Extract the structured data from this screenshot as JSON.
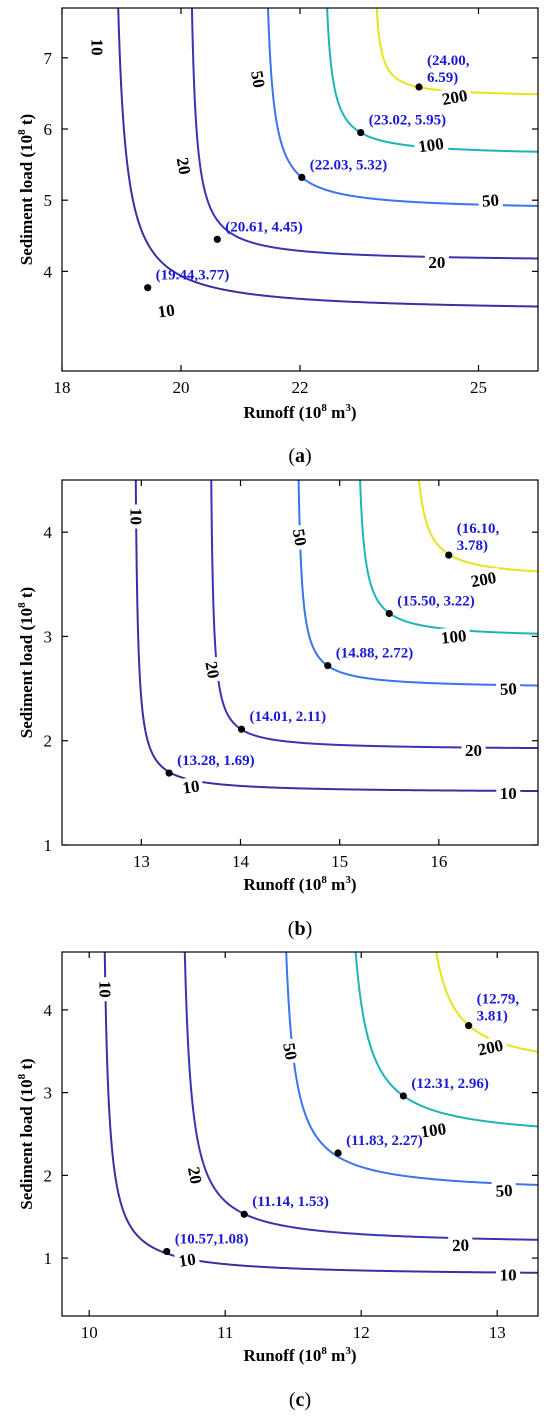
{
  "theme": {
    "point_label_color": "#1a1ad6",
    "level_colors": {
      "10": "#3a2f9e",
      "20": "#3a34b0",
      "50": "#3b75ee",
      "100": "#1fb3b8",
      "200": "#e8e41a"
    }
  },
  "chart_data": [
    {
      "type": "line",
      "caption": "a",
      "xlabel": "Runoff (10",
      "xlabel_sup": "8",
      "xlabel_tail": " m",
      "xlabel_sup2": "3",
      "xlabel_end": ")",
      "ylabel": "Sediment load (10",
      "ylabel_sup": "8",
      "ylabel_end": " t)",
      "xlim": [
        18,
        26
      ],
      "ylim": [
        2.6,
        7.7
      ],
      "xticks": [
        18,
        20,
        22,
        25
      ],
      "xticklabels": [
        "18",
        "20",
        "22",
        "25"
      ],
      "yticks": [
        4,
        5,
        6,
        7
      ],
      "yticklabels": [
        "4",
        "5",
        "6",
        "7"
      ],
      "series": [
        {
          "level": "10",
          "x0": 18.8,
          "y0": 3.42,
          "k": 0.62
        },
        {
          "level": "20",
          "x0": 20.1,
          "y0": 4.13,
          "k": 0.3
        },
        {
          "level": "50",
          "x0": 21.35,
          "y0": 4.85,
          "k": 0.32
        },
        {
          "level": "100",
          "x0": 22.35,
          "y0": 5.62,
          "k": 0.22
        },
        {
          "level": "200",
          "x0": 23.2,
          "y0": 6.45,
          "k": 0.11
        }
      ],
      "contour_labels": [
        {
          "text": "10",
          "x": 18.6,
          "y": 7.15,
          "rot": 90
        },
        {
          "text": "10",
          "x": 19.75,
          "y": 3.45,
          "rot": -8
        },
        {
          "text": "20",
          "x": 20.05,
          "y": 5.48,
          "rot": 80
        },
        {
          "text": "20",
          "x": 24.3,
          "y": 4.13,
          "rot": 0
        },
        {
          "text": "50",
          "x": 21.3,
          "y": 6.7,
          "rot": 80
        },
        {
          "text": "50",
          "x": 25.2,
          "y": 5.0,
          "rot": -4
        },
        {
          "text": "100",
          "x": 24.2,
          "y": 5.78,
          "rot": -8
        },
        {
          "text": "200",
          "x": 24.6,
          "y": 6.45,
          "rot": -10
        }
      ],
      "points": [
        {
          "x": 19.44,
          "y": 3.77,
          "label": "(19.44,3.77)"
        },
        {
          "x": 20.61,
          "y": 4.45,
          "label": "(20.61, 4.45)"
        },
        {
          "x": 22.03,
          "y": 5.32,
          "label": "(22.03, 5.32)"
        },
        {
          "x": 23.02,
          "y": 5.95,
          "label": "(23.02, 5.95)"
        },
        {
          "x": 24.0,
          "y": 6.59,
          "label": "(24.00,",
          "label2": "6.59)"
        }
      ]
    },
    {
      "type": "line",
      "caption": "b",
      "xlabel": "Runoff (10",
      "xlabel_sup": "8",
      "xlabel_tail": " m",
      "xlabel_sup2": "3",
      "xlabel_end": ")",
      "ylabel": "Sediment load (10",
      "ylabel_sup": "8",
      "ylabel_end": " t)",
      "xlim": [
        12.2,
        17.0
      ],
      "ylim": [
        1.0,
        4.5
      ],
      "xticks": [
        13,
        14,
        15,
        16
      ],
      "xticklabels": [
        "13",
        "14",
        "15",
        "16"
      ],
      "yticks": [
        1,
        2,
        3,
        4
      ],
      "yticklabels": [
        "1",
        "2",
        "3",
        "4"
      ],
      "series": [
        {
          "level": "10",
          "x0": 12.92,
          "y0": 1.5,
          "k": 0.072
        },
        {
          "level": "20",
          "x0": 13.68,
          "y0": 1.91,
          "k": 0.065
        },
        {
          "level": "50",
          "x0": 14.55,
          "y0": 2.5,
          "k": 0.072
        },
        {
          "level": "100",
          "x0": 15.15,
          "y0": 2.98,
          "k": 0.085
        },
        {
          "level": "200",
          "x0": 15.7,
          "y0": 3.55,
          "k": 0.095
        }
      ],
      "contour_labels": [
        {
          "text": "10",
          "x": 12.95,
          "y": 4.15,
          "rot": 90
        },
        {
          "text": "10",
          "x": 13.5,
          "y": 1.56,
          "rot": -8
        },
        {
          "text": "10",
          "x": 16.7,
          "y": 1.5,
          "rot": 0
        },
        {
          "text": "20",
          "x": 13.72,
          "y": 2.68,
          "rot": 80
        },
        {
          "text": "20",
          "x": 16.35,
          "y": 1.91,
          "rot": 0
        },
        {
          "text": "50",
          "x": 14.6,
          "y": 3.95,
          "rot": 80
        },
        {
          "text": "50",
          "x": 16.7,
          "y": 2.5,
          "rot": -3
        },
        {
          "text": "100",
          "x": 16.15,
          "y": 3.0,
          "rot": -6
        },
        {
          "text": "200",
          "x": 16.45,
          "y": 3.55,
          "rot": -10
        }
      ],
      "points": [
        {
          "x": 13.28,
          "y": 1.69,
          "label": "(13.28, 1.69)"
        },
        {
          "x": 14.01,
          "y": 2.11,
          "label": "(14.01, 2.11)"
        },
        {
          "x": 14.88,
          "y": 2.72,
          "label": "(14.88, 2.72)"
        },
        {
          "x": 15.5,
          "y": 3.22,
          "label": "(15.50, 3.22)"
        },
        {
          "x": 16.1,
          "y": 3.78,
          "label": "(16.10,",
          "label2": "3.78)"
        }
      ]
    },
    {
      "type": "line",
      "caption": "c",
      "xlabel": "Runoff (10",
      "xlabel_sup": "8",
      "xlabel_tail": " m",
      "xlabel_sup2": "3",
      "xlabel_end": ")",
      "ylabel": "Sediment load (10",
      "ylabel_sup": "8",
      "ylabel_end": " t)",
      "xlim": [
        9.8,
        13.3
      ],
      "ylim": [
        0.3,
        4.7
      ],
      "xticks": [
        10,
        11,
        12,
        13
      ],
      "xticklabels": [
        "10",
        "11",
        "12",
        "13"
      ],
      "yticks": [
        1,
        2,
        3,
        4
      ],
      "yticklabels": [
        "1",
        "2",
        "3",
        "4"
      ],
      "series": [
        {
          "level": "10",
          "x0": 10.08,
          "y0": 0.78,
          "k": 0.135
        },
        {
          "level": "20",
          "x0": 10.65,
          "y0": 1.15,
          "k": 0.188
        },
        {
          "level": "50",
          "x0": 11.38,
          "y0": 1.78,
          "k": 0.2
        },
        {
          "level": "100",
          "x0": 11.85,
          "y0": 2.42,
          "k": 0.249
        },
        {
          "level": "200",
          "x0": 12.4,
          "y0": 3.25,
          "k": 0.22
        }
      ],
      "contour_labels": [
        {
          "text": "10",
          "x": 10.12,
          "y": 4.25,
          "rot": 90
        },
        {
          "text": "10",
          "x": 10.72,
          "y": 0.98,
          "rot": -8
        },
        {
          "text": "10",
          "x": 13.08,
          "y": 0.8,
          "rot": 0
        },
        {
          "text": "20",
          "x": 10.78,
          "y": 2.0,
          "rot": 80
        },
        {
          "text": "20",
          "x": 12.73,
          "y": 1.16,
          "rot": -2
        },
        {
          "text": "50",
          "x": 11.48,
          "y": 3.5,
          "rot": 80
        },
        {
          "text": "50",
          "x": 13.05,
          "y": 1.82,
          "rot": -3
        },
        {
          "text": "100",
          "x": 12.53,
          "y": 2.55,
          "rot": -8
        },
        {
          "text": "200",
          "x": 12.95,
          "y": 3.55,
          "rot": -12
        }
      ],
      "points": [
        {
          "x": 10.57,
          "y": 1.08,
          "label": "(10.57,1.08)"
        },
        {
          "x": 11.14,
          "y": 1.53,
          "label": "(11.14, 1.53)"
        },
        {
          "x": 11.83,
          "y": 2.27,
          "label": "(11.83, 2.27)"
        },
        {
          "x": 12.31,
          "y": 2.96,
          "label": "(12.31, 2.96)"
        },
        {
          "x": 12.79,
          "y": 3.81,
          "label": "(12.79,",
          "label2": "3.81)"
        }
      ]
    }
  ]
}
